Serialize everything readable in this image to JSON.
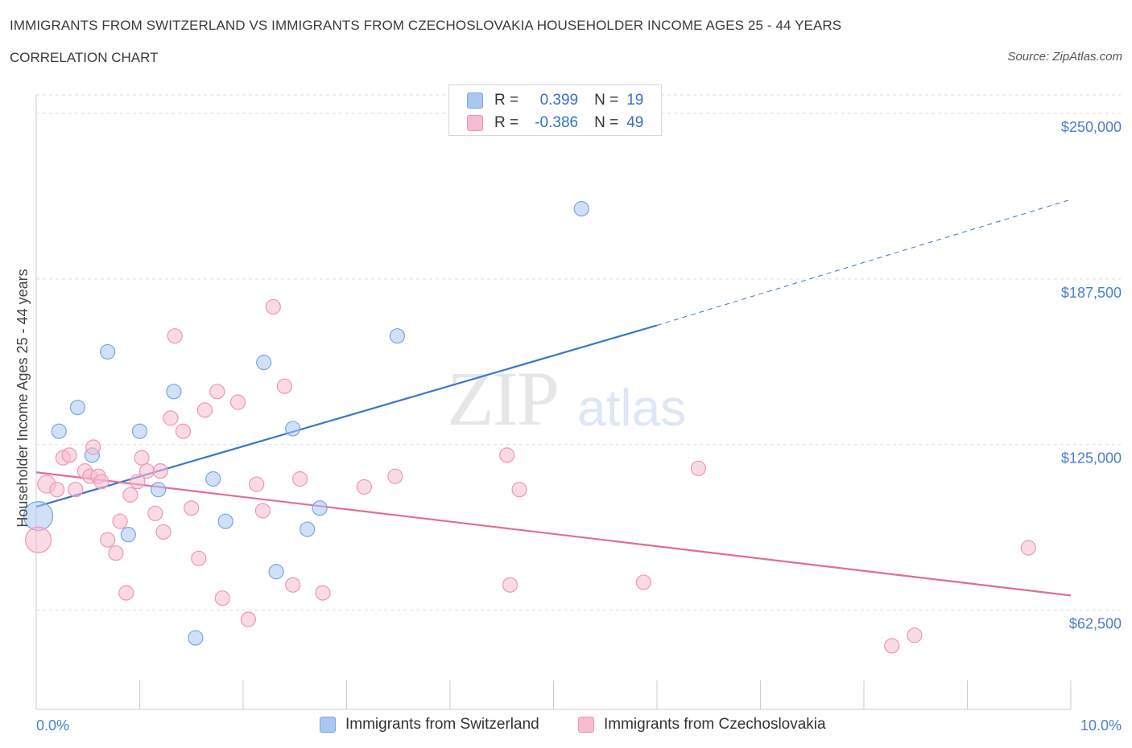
{
  "header": {
    "title": "IMMIGRANTS FROM SWITZERLAND VS IMMIGRANTS FROM CZECHOSLOVAKIA HOUSEHOLDER INCOME AGES 25 - 44 YEARS",
    "subtitle": "CORRELATION CHART",
    "source": "Source: ZipAtlas.com"
  },
  "watermark": {
    "zip": "ZIP",
    "atlas": "atlas"
  },
  "legend": {
    "rows": [
      {
        "r_label": "R =",
        "r_value": "0.399",
        "n_label": "N =",
        "n_value": "19",
        "color": "#a9c8f0"
      },
      {
        "r_label": "R =",
        "r_value": "-0.386",
        "n_label": "N =",
        "n_value": "49",
        "color": "#f6bcd0"
      }
    ]
  },
  "bottom_legend": [
    {
      "label": "Immigrants from Switzerland",
      "color": "#a9c8f0"
    },
    {
      "label": "Immigrants from Czechoslovakia",
      "color": "#f6bcd0"
    }
  ],
  "colors": {
    "blue_fill": "#a9c8f0",
    "blue_stroke": "#7aa6e0",
    "blue_line": "#3a76cc",
    "pink_fill": "#f6bcd0",
    "pink_stroke": "#ee97b5",
    "pink_line": "#e36b97",
    "grid": "#dddddd",
    "tick_text": "#4a7fcf"
  },
  "chart_data": {
    "type": "scatter",
    "ylabel": "Householder Income Ages 25 - 44 years",
    "xlim": [
      0,
      10
    ],
    "ylim": [
      25000,
      257000
    ],
    "x_tick_labels": [
      "0.0%",
      "10.0%"
    ],
    "y_ticks": [
      62500,
      125000,
      187500,
      250000
    ],
    "y_tick_labels": [
      "$62,500",
      "$125,000",
      "$187,500",
      "$250,000"
    ],
    "grid": "horizontal dashed",
    "legend_placement": "top-center",
    "series": [
      {
        "name": "Immigrants from Switzerland",
        "points": [
          {
            "x": 0.02,
            "y": 98000,
            "size": 18
          },
          {
            "x": 0.22,
            "y": 130000,
            "size": 9
          },
          {
            "x": 0.4,
            "y": 139000,
            "size": 9
          },
          {
            "x": 0.54,
            "y": 121000,
            "size": 9
          },
          {
            "x": 0.69,
            "y": 160000,
            "size": 9
          },
          {
            "x": 0.89,
            "y": 91000,
            "size": 9
          },
          {
            "x": 1.0,
            "y": 130000,
            "size": 9
          },
          {
            "x": 1.18,
            "y": 108000,
            "size": 9
          },
          {
            "x": 1.33,
            "y": 145000,
            "size": 9
          },
          {
            "x": 1.54,
            "y": 52000,
            "size": 9
          },
          {
            "x": 1.71,
            "y": 112000,
            "size": 9
          },
          {
            "x": 1.83,
            "y": 96000,
            "size": 9
          },
          {
            "x": 2.2,
            "y": 156000,
            "size": 9
          },
          {
            "x": 2.32,
            "y": 77000,
            "size": 9
          },
          {
            "x": 2.48,
            "y": 131000,
            "size": 9
          },
          {
            "x": 2.62,
            "y": 93000,
            "size": 9
          },
          {
            "x": 2.74,
            "y": 101000,
            "size": 9
          },
          {
            "x": 3.49,
            "y": 166000,
            "size": 9
          },
          {
            "x": 5.27,
            "y": 214000,
            "size": 9
          }
        ],
        "trend": {
          "x0": 0.0,
          "y0": 101500,
          "x1": 6.0,
          "y1": 170000,
          "dashed_to_x": 10.0,
          "dashed_to_y": 217500
        }
      },
      {
        "name": "Immigrants from Czechoslovakia",
        "points": [
          {
            "x": 0.02,
            "y": 89000,
            "size": 16
          },
          {
            "x": 0.1,
            "y": 110000,
            "size": 11
          },
          {
            "x": 0.2,
            "y": 108000,
            "size": 9
          },
          {
            "x": 0.26,
            "y": 120000,
            "size": 9
          },
          {
            "x": 0.32,
            "y": 121000,
            "size": 9
          },
          {
            "x": 0.38,
            "y": 108000,
            "size": 9
          },
          {
            "x": 0.47,
            "y": 115000,
            "size": 9
          },
          {
            "x": 0.52,
            "y": 113000,
            "size": 9
          },
          {
            "x": 0.55,
            "y": 124000,
            "size": 9
          },
          {
            "x": 0.6,
            "y": 113000,
            "size": 9
          },
          {
            "x": 0.63,
            "y": 111000,
            "size": 9
          },
          {
            "x": 0.69,
            "y": 89000,
            "size": 9
          },
          {
            "x": 0.77,
            "y": 84000,
            "size": 9
          },
          {
            "x": 0.81,
            "y": 96000,
            "size": 9
          },
          {
            "x": 0.87,
            "y": 69000,
            "size": 9
          },
          {
            "x": 0.91,
            "y": 106000,
            "size": 9
          },
          {
            "x": 0.98,
            "y": 111000,
            "size": 9
          },
          {
            "x": 1.02,
            "y": 120000,
            "size": 9
          },
          {
            "x": 1.07,
            "y": 115000,
            "size": 9
          },
          {
            "x": 1.15,
            "y": 99000,
            "size": 9
          },
          {
            "x": 1.2,
            "y": 115000,
            "size": 9
          },
          {
            "x": 1.23,
            "y": 92000,
            "size": 9
          },
          {
            "x": 1.3,
            "y": 135000,
            "size": 9
          },
          {
            "x": 1.34,
            "y": 166000,
            "size": 9
          },
          {
            "x": 1.42,
            "y": 130000,
            "size": 9
          },
          {
            "x": 1.5,
            "y": 101000,
            "size": 9
          },
          {
            "x": 1.57,
            "y": 82000,
            "size": 9
          },
          {
            "x": 1.63,
            "y": 138000,
            "size": 9
          },
          {
            "x": 1.75,
            "y": 145000,
            "size": 9
          },
          {
            "x": 1.8,
            "y": 67000,
            "size": 9
          },
          {
            "x": 1.95,
            "y": 141000,
            "size": 9
          },
          {
            "x": 2.05,
            "y": 59000,
            "size": 9
          },
          {
            "x": 2.13,
            "y": 110000,
            "size": 9
          },
          {
            "x": 2.19,
            "y": 100000,
            "size": 9
          },
          {
            "x": 2.29,
            "y": 177000,
            "size": 9
          },
          {
            "x": 2.4,
            "y": 147000,
            "size": 9
          },
          {
            "x": 2.48,
            "y": 72000,
            "size": 9
          },
          {
            "x": 2.55,
            "y": 112000,
            "size": 9
          },
          {
            "x": 2.77,
            "y": 69000,
            "size": 9
          },
          {
            "x": 3.17,
            "y": 109000,
            "size": 9
          },
          {
            "x": 3.47,
            "y": 113000,
            "size": 9
          },
          {
            "x": 4.67,
            "y": 108000,
            "size": 9
          },
          {
            "x": 4.55,
            "y": 121000,
            "size": 9
          },
          {
            "x": 4.58,
            "y": 72000,
            "size": 9
          },
          {
            "x": 5.87,
            "y": 73000,
            "size": 9
          },
          {
            "x": 6.4,
            "y": 116000,
            "size": 9
          },
          {
            "x": 8.27,
            "y": 49000,
            "size": 9
          },
          {
            "x": 8.49,
            "y": 53000,
            "size": 9
          },
          {
            "x": 9.59,
            "y": 86000,
            "size": 9
          }
        ],
        "trend": {
          "x0": 0.0,
          "y0": 114500,
          "x1": 10.0,
          "y1": 68000
        }
      }
    ]
  }
}
